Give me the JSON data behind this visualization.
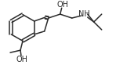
{
  "bg_color": "#ffffff",
  "line_color": "#2a2a2a",
  "text_color": "#2a2a2a",
  "lw": 1.1,
  "fontsize": 6.5,
  "figsize": [
    1.48,
    0.83
  ],
  "dpi": 100,
  "xlim": [
    0,
    148
  ],
  "ylim": [
    0,
    83
  ]
}
